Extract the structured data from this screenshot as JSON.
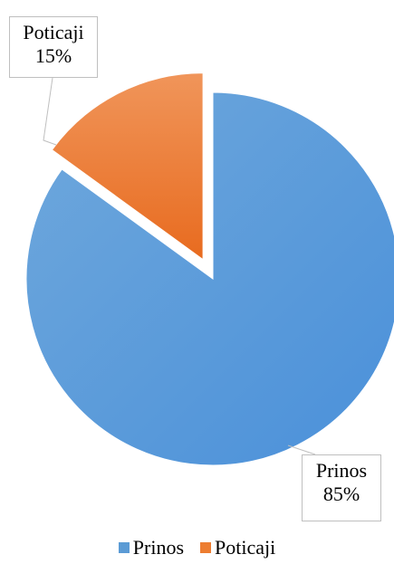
{
  "chart_data": {
    "type": "pie",
    "categories": [
      "Prinos",
      "Poticaji"
    ],
    "values": [
      85,
      15
    ],
    "value_labels": [
      "85%",
      "15%"
    ],
    "colors": {
      "Prinos": "#5b9bd5",
      "Poticaji": "#ed7d31"
    },
    "exploded": [
      "Poticaji"
    ],
    "legend_position": "bottom",
    "title": ""
  },
  "labels": {
    "prinos_name": "Prinos",
    "prinos_value": "85%",
    "poticaji_name": "Poticaji",
    "poticaji_value": "15%"
  },
  "legend": {
    "items": [
      {
        "label": "Prinos",
        "color": "#5b9bd5"
      },
      {
        "label": "Poticaji",
        "color": "#ed7d31"
      }
    ]
  }
}
